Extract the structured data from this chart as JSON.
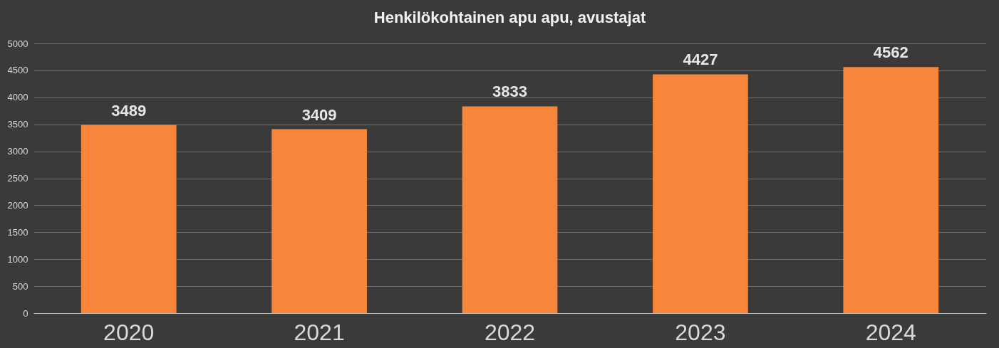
{
  "chart_data": {
    "type": "bar",
    "title": "Henkilökohtainen apu apu, avustajat",
    "categories": [
      "2020",
      "2021",
      "2022",
      "2023",
      "2024"
    ],
    "values": [
      3489,
      3409,
      3833,
      4427,
      4562
    ],
    "color": "#f7863a",
    "ylim": [
      0,
      5000
    ],
    "yticks": [
      0,
      500,
      1000,
      1500,
      2000,
      2500,
      3000,
      3500,
      4000,
      4500,
      5000
    ],
    "grid": "y",
    "data_labels": true
  }
}
